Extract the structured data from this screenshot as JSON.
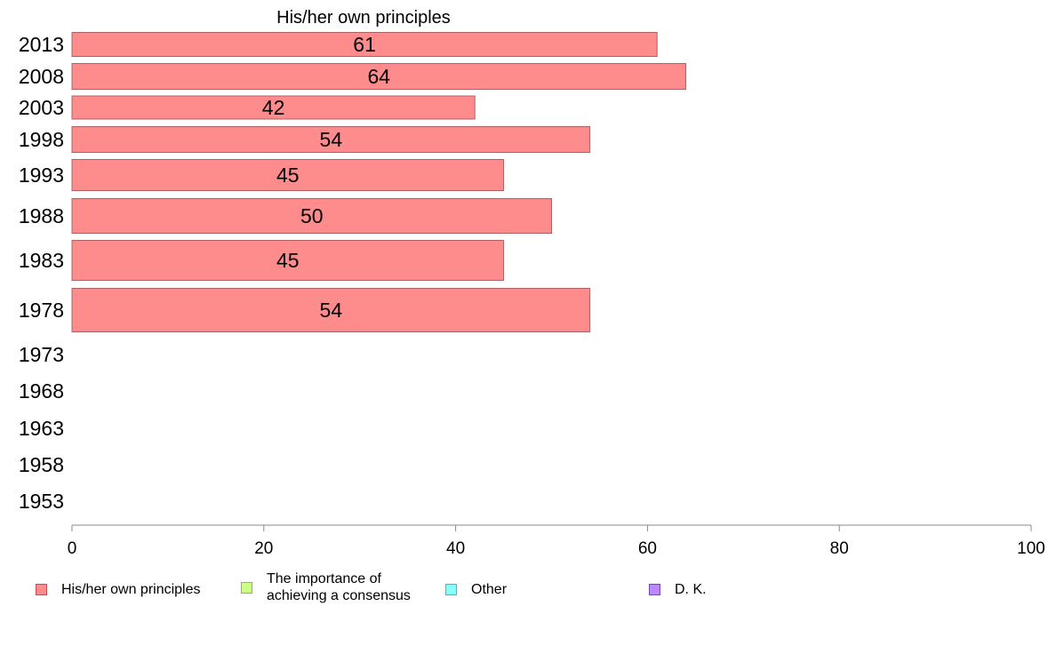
{
  "chart_data": {
    "type": "bar",
    "orientation": "horizontal",
    "title": "His/her own principles",
    "categories": [
      "2013",
      "2008",
      "2003",
      "1998",
      "1993",
      "1988",
      "1983",
      "1978",
      "1973",
      "1968",
      "1963",
      "1958",
      "1953"
    ],
    "series": [
      {
        "name": "His/her own principles",
        "color": "#ff8c8c",
        "values": [
          61,
          64,
          42,
          54,
          45,
          50,
          45,
          54,
          null,
          null,
          null,
          null,
          null
        ]
      }
    ],
    "xlim": [
      0,
      100
    ],
    "xticks": [
      "0",
      "20",
      "40",
      "60",
      "80",
      "100"
    ],
    "xlabel": "",
    "ylabel": "",
    "grid": false,
    "legend_position": "bottom"
  },
  "legend": [
    {
      "label": "His/her own principles",
      "color": "#ff8c8c",
      "border": "#c05050"
    },
    {
      "label": "The importance of\nachieving a consensus",
      "color": "#ccff88",
      "border": "#88bb44"
    },
    {
      "label": "Other",
      "color": "#88ffff",
      "border": "#44bbbb"
    },
    {
      "label": "D. K.",
      "color": "#bb88ff",
      "border": "#7744cc"
    }
  ]
}
